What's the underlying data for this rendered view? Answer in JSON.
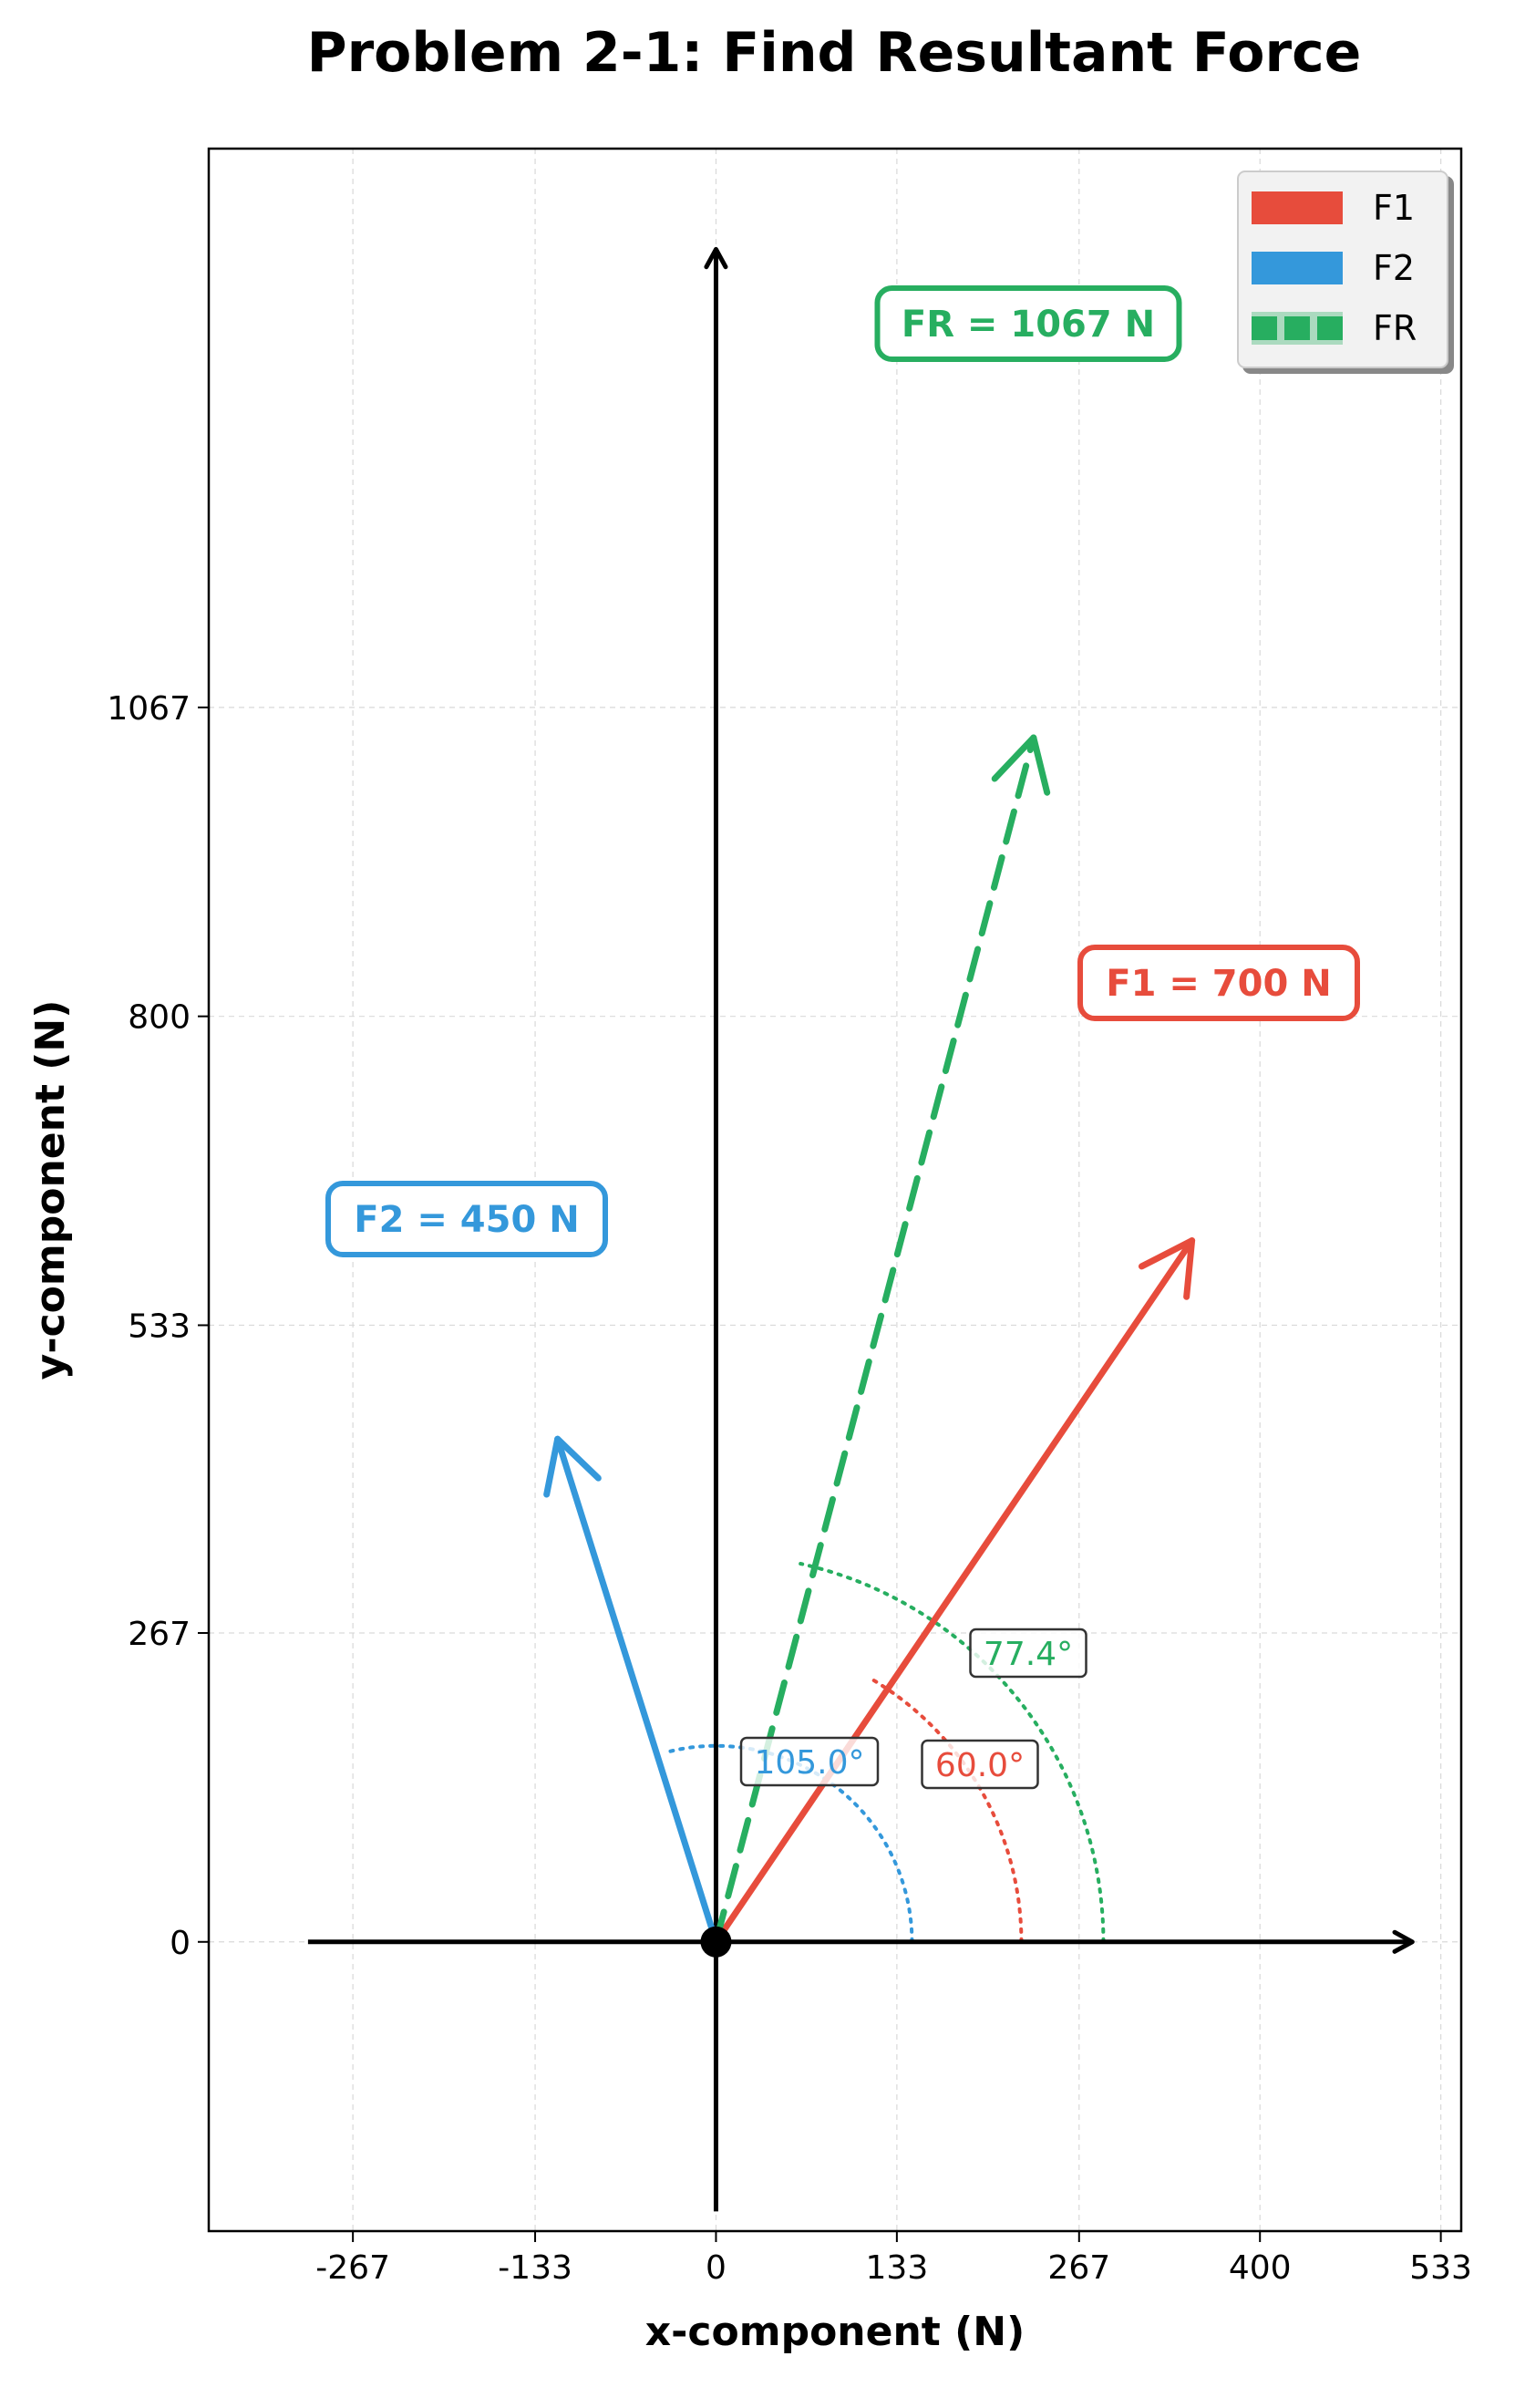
{
  "chart_data": {
    "type": "vector",
    "title": "Problem 2-1: Find Resultant Force",
    "xlabel": "x-component (N)",
    "ylabel": "y-component (N)",
    "xlim": [
      -373,
      548
    ],
    "ylim": [
      -250,
      1550
    ],
    "x_ticks": [
      -267,
      -133,
      0,
      133,
      267,
      400,
      533
    ],
    "y_ticks": [
      0,
      267,
      533,
      800,
      1067
    ],
    "x_tick_labels": [
      "-267",
      "-133",
      "0",
      "133",
      "267",
      "400",
      "533"
    ],
    "y_tick_labels": [
      "0",
      "267",
      "533",
      "800",
      "1067"
    ],
    "grid": true,
    "legend_position": "top-right",
    "series": [
      {
        "name": "F1",
        "magnitude": 700,
        "angle_deg": 60.0,
        "components": [
          350,
          606.2
        ],
        "color": "#e74c3c",
        "style": "solid",
        "label": "F1 = 700 N",
        "angle_label": "60.0°"
      },
      {
        "name": "F2",
        "magnitude": 450,
        "angle_deg": 105.0,
        "components": [
          -116.5,
          434.7
        ],
        "color": "#3498db",
        "style": "solid",
        "label": "F2 = 450 N",
        "angle_label": "105.0°"
      },
      {
        "name": "FR",
        "magnitude": 1067,
        "angle_deg": 77.4,
        "components": [
          233.5,
          1040.9
        ],
        "color": "#27ae60",
        "style": "dashed",
        "label": "FR = 1067 N",
        "angle_label": "77.4°"
      }
    ]
  }
}
